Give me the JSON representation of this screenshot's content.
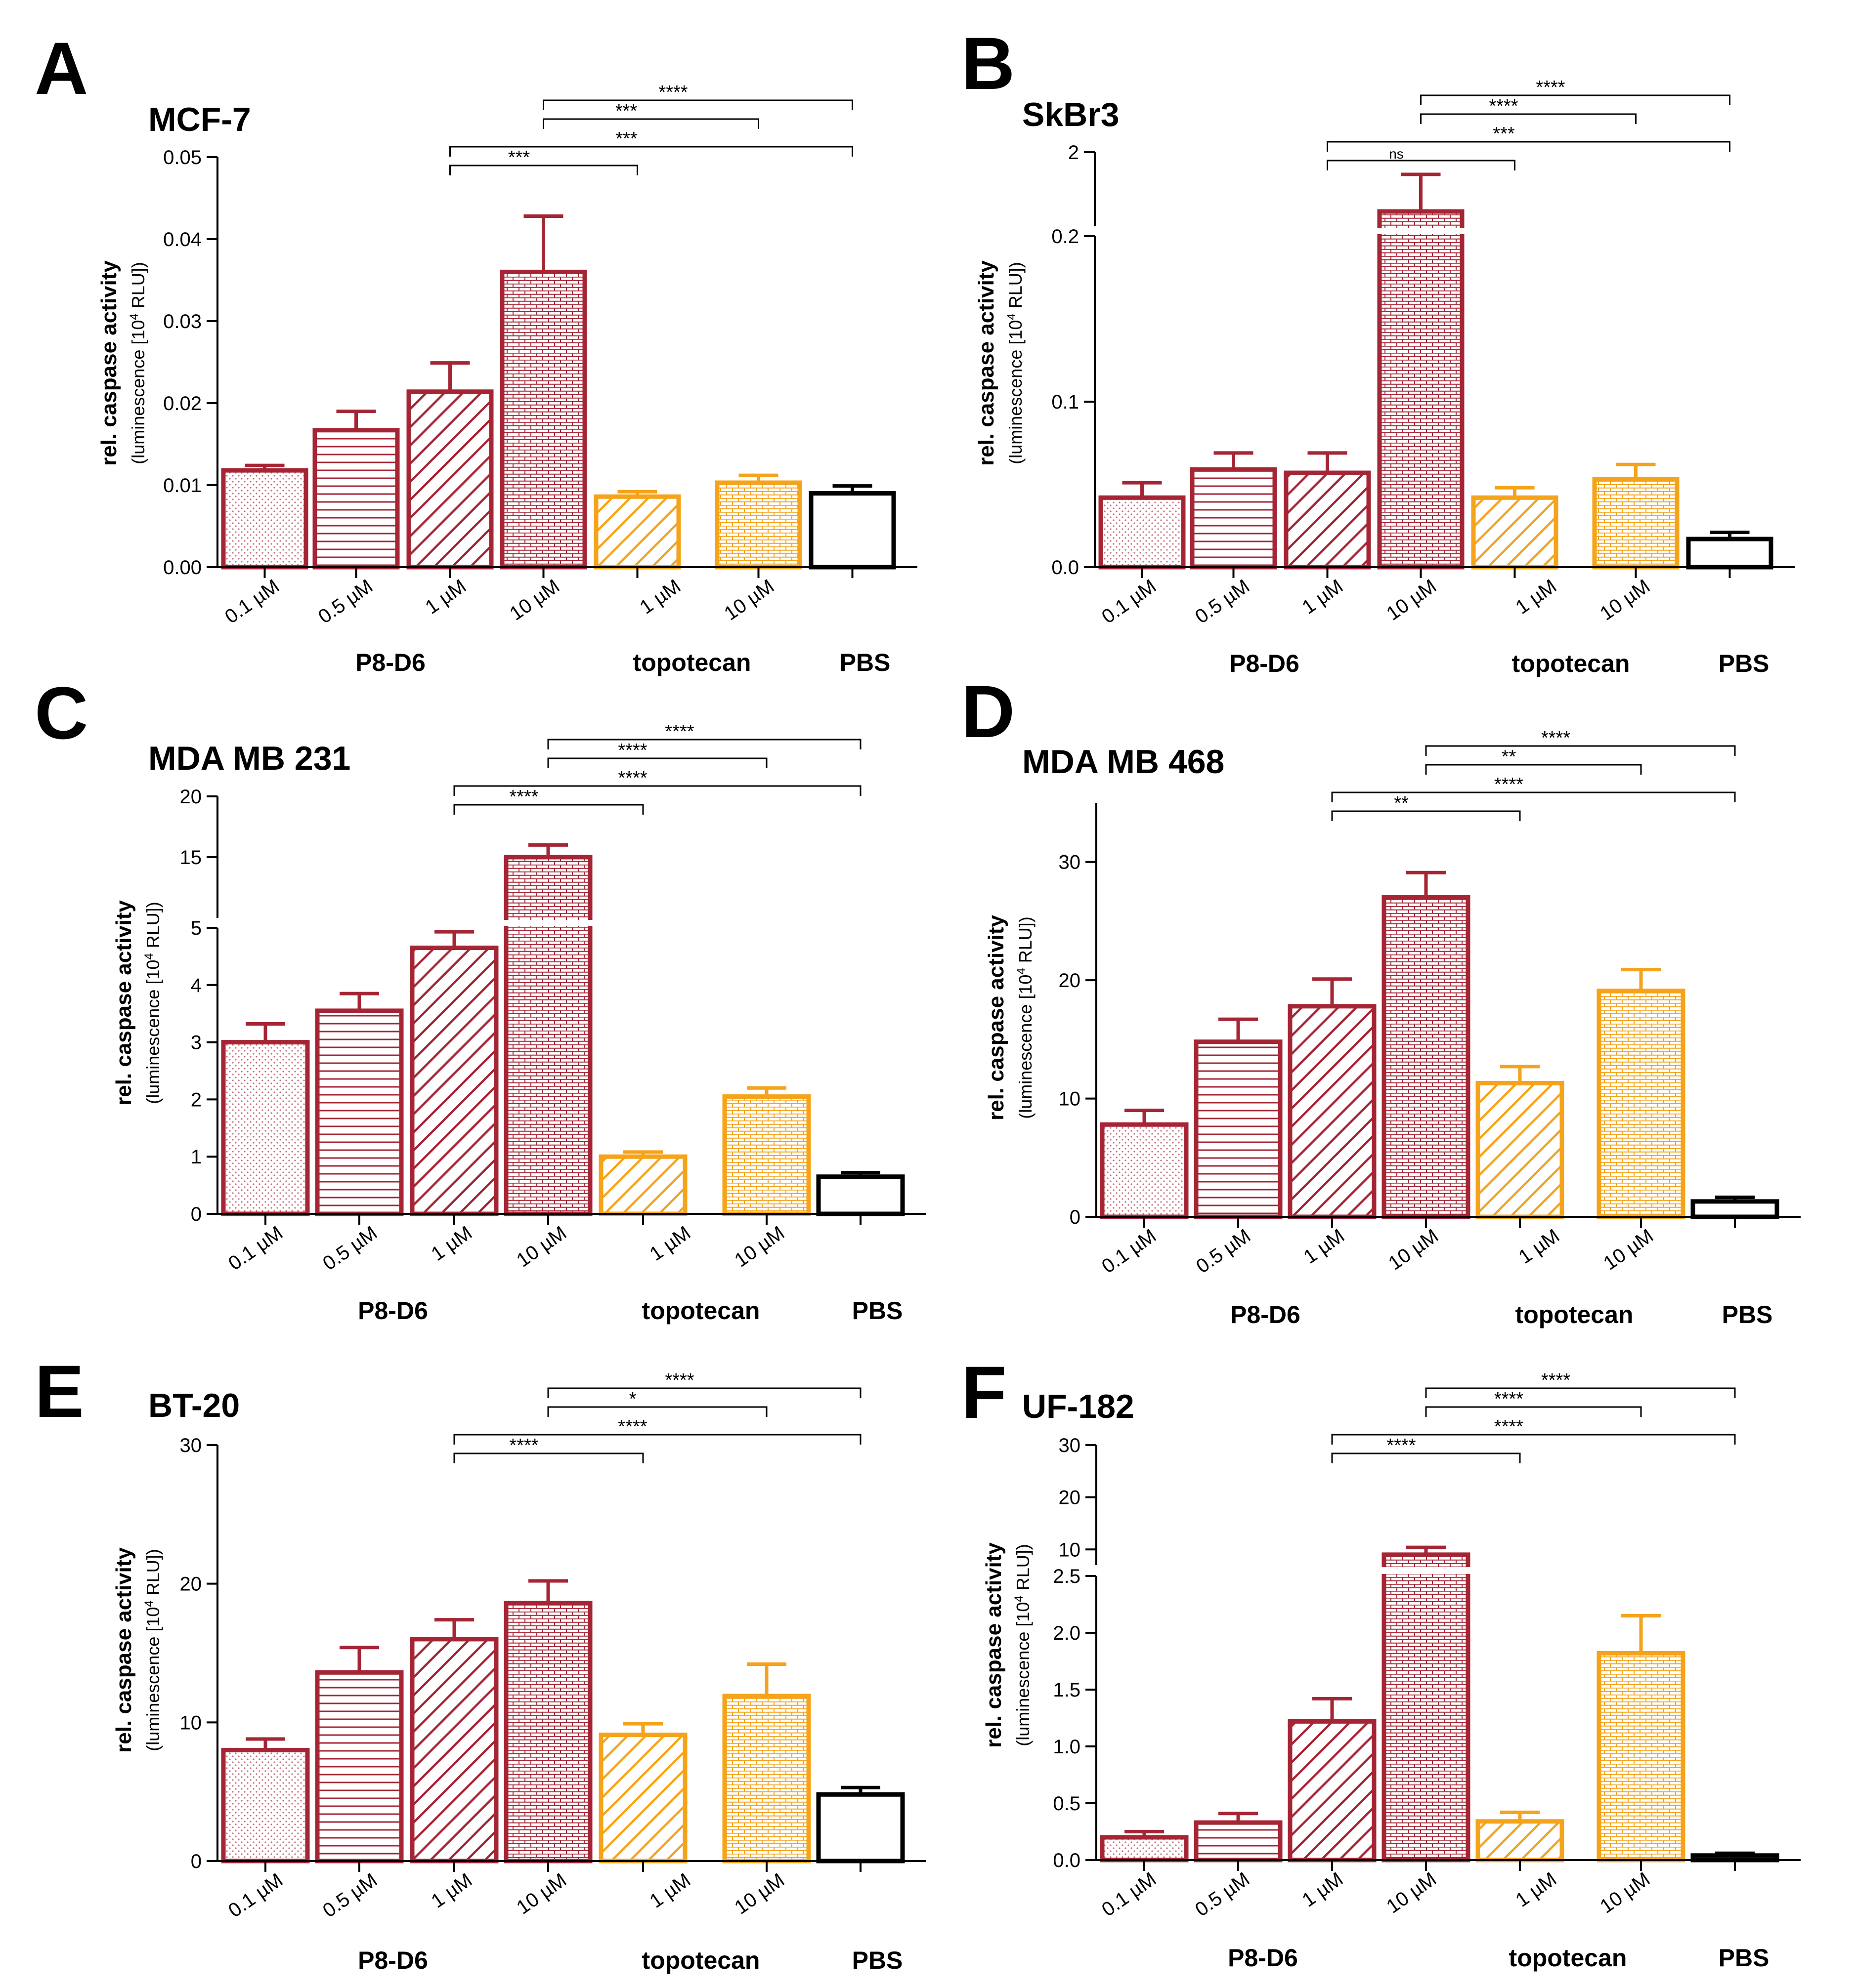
{
  "colors": {
    "p8": "#A52535",
    "topo": "#F5A31A",
    "pbs": "#000000"
  },
  "chart_data": [
    {
      "letter": "A",
      "title": "MCF-7",
      "type": "bar",
      "ylabel": "rel. caspase activity",
      "ylabel_sub_prefix": "(luminescence [10",
      "ylabel_sub_sup": "4",
      "ylabel_sub_suffix": " RLU])",
      "ylim": [
        0,
        0.05
      ],
      "ticks": [
        0,
        0.01,
        0.02,
        0.03,
        0.04,
        0.05
      ],
      "tick_labels": [
        "0.00",
        "0.01",
        "0.02",
        "0.03",
        "0.04",
        "0.05"
      ],
      "categories": [
        "0.1 µM",
        "0.5 µM",
        "1 µM",
        "10 µM",
        "1 µM",
        "10 µM",
        ""
      ],
      "groups": [
        "P8-D6",
        "topotecan",
        "PBS"
      ],
      "values": [
        0.0118,
        0.0167,
        0.0214,
        0.036,
        0.0086,
        0.0103,
        0.009
      ],
      "errors": [
        0.0006,
        0.0023,
        0.0035,
        0.0068,
        0.0006,
        0.0009,
        0.0009
      ],
      "significance": [
        {
          "from": 3,
          "to": 6,
          "label": "****"
        },
        {
          "from": 3,
          "to": 5,
          "label": "***"
        },
        {
          "from": 2,
          "to": 6,
          "label": "***"
        },
        {
          "from": 2,
          "to": 4,
          "label": "***"
        }
      ]
    },
    {
      "letter": "B",
      "title": "SkBr3",
      "type": "bar",
      "ylabel": "rel. caspase activity",
      "ylabel_sub_prefix": "(luminescence [10",
      "ylabel_sub_sup": "4",
      "ylabel_sub_suffix": " RLU])",
      "ylim": [
        0,
        2
      ],
      "axis_break": {
        "low": 0.2,
        "high": 1.9
      },
      "ticks": [
        0,
        0.1,
        0.2,
        2
      ],
      "tick_labels": [
        "0.0",
        "0.1",
        "0.2",
        "2"
      ],
      "categories": [
        "0.1 µM",
        "0.5 µM",
        "1 µM",
        "10 µM",
        "1 µM",
        "10 µM",
        ""
      ],
      "groups": [
        "P8-D6",
        "topotecan",
        "PBS"
      ],
      "values": [
        0.042,
        0.059,
        0.057,
        1.92,
        0.042,
        0.053,
        0.017
      ],
      "errors": [
        0.009,
        0.01,
        0.012,
        0.05,
        0.006,
        0.009,
        0.004
      ],
      "significance": [
        {
          "from": 3,
          "to": 6,
          "label": "****"
        },
        {
          "from": 3,
          "to": 5,
          "label": "****"
        },
        {
          "from": 2,
          "to": 6,
          "label": "***"
        },
        {
          "from": 2,
          "to": 4,
          "label": "ns"
        }
      ]
    },
    {
      "letter": "C",
      "title": "MDA MB 231",
      "type": "bar",
      "ylabel": "rel. caspase activity",
      "ylabel_sub_prefix": "(luminescence [10",
      "ylabel_sub_sup": "4",
      "ylabel_sub_suffix": " RLU])",
      "ylim": [
        0,
        20
      ],
      "axis_break": {
        "low": 5,
        "high": 10
      },
      "ticks": [
        0,
        1,
        2,
        3,
        4,
        5,
        15,
        20
      ],
      "tick_labels": [
        "0",
        "1",
        "2",
        "3",
        "4",
        "5",
        "15",
        "20"
      ],
      "categories": [
        "0.1 µM",
        "0.5 µM",
        "1 µM",
        "10 µM",
        "1 µM",
        "10 µM",
        ""
      ],
      "groups": [
        "P8-D6",
        "topotecan",
        "PBS"
      ],
      "values": [
        3.0,
        3.55,
        4.65,
        15.0,
        1.0,
        2.05,
        0.65
      ],
      "errors": [
        0.32,
        0.3,
        0.28,
        1.0,
        0.08,
        0.15,
        0.07
      ],
      "significance": [
        {
          "from": 3,
          "to": 6,
          "label": "****"
        },
        {
          "from": 3,
          "to": 5,
          "label": "****"
        },
        {
          "from": 2,
          "to": 6,
          "label": "****"
        },
        {
          "from": 2,
          "to": 4,
          "label": "****"
        }
      ]
    },
    {
      "letter": "D",
      "title": "MDA MB 468",
      "type": "bar",
      "ylabel": "rel. caspase activity",
      "ylabel_sub_prefix": "(luminescence [10",
      "ylabel_sub_sup": "4",
      "ylabel_sub_suffix": " RLU])",
      "ylim": [
        0,
        35
      ],
      "ticks": [
        0,
        10,
        20,
        30
      ],
      "tick_labels": [
        "0",
        "10",
        "20",
        "30"
      ],
      "categories": [
        "0.1 µM",
        "0.5 µM",
        "1 µM",
        "10 µM",
        "1 µM",
        "10 µM",
        ""
      ],
      "groups": [
        "P8-D6",
        "topotecan",
        "PBS"
      ],
      "values": [
        7.8,
        14.8,
        17.8,
        27.0,
        11.3,
        19.1,
        1.3
      ],
      "errors": [
        1.2,
        1.9,
        2.3,
        2.1,
        1.4,
        1.8,
        0.35
      ],
      "significance": [
        {
          "from": 3,
          "to": 6,
          "label": "****"
        },
        {
          "from": 3,
          "to": 5,
          "label": "**"
        },
        {
          "from": 2,
          "to": 6,
          "label": "****"
        },
        {
          "from": 2,
          "to": 4,
          "label": "**"
        }
      ]
    },
    {
      "letter": "E",
      "title": "BT-20",
      "type": "bar",
      "ylabel": "rel. caspase activity",
      "ylabel_sub_prefix": "(luminescence [10",
      "ylabel_sub_sup": "4",
      "ylabel_sub_suffix": " RLU])",
      "ylim": [
        0,
        30
      ],
      "ticks": [
        0,
        10,
        20,
        30
      ],
      "tick_labels": [
        "0",
        "10",
        "20",
        "30"
      ],
      "categories": [
        "0.1 µM",
        "0.5 µM",
        "1 µM",
        "10 µM",
        "1 µM",
        "10 µM",
        ""
      ],
      "groups": [
        "P8-D6",
        "topotecan",
        "PBS"
      ],
      "values": [
        8.0,
        13.6,
        16.0,
        18.6,
        9.1,
        11.9,
        4.8
      ],
      "errors": [
        0.8,
        1.8,
        1.4,
        1.6,
        0.8,
        2.3,
        0.5
      ],
      "significance": [
        {
          "from": 3,
          "to": 6,
          "label": "****"
        },
        {
          "from": 3,
          "to": 5,
          "label": "*"
        },
        {
          "from": 2,
          "to": 6,
          "label": "****"
        },
        {
          "from": 2,
          "to": 4,
          "label": "****"
        }
      ]
    },
    {
      "letter": "F",
      "title": "UF-182",
      "type": "bar",
      "ylabel": "rel. caspase activity",
      "ylabel_sub_prefix": "(luminescence [10",
      "ylabel_sub_sup": "4",
      "ylabel_sub_suffix": " RLU])",
      "ylim": [
        0,
        30
      ],
      "axis_break": {
        "low": 2.5,
        "high": 7
      },
      "ticks": [
        0,
        0.5,
        1.0,
        1.5,
        2.0,
        2.5,
        10,
        20,
        30
      ],
      "tick_labels": [
        "0.0",
        "0.5",
        "1.0",
        "1.5",
        "2.0",
        "2.5",
        "10",
        "20",
        "30"
      ],
      "categories": [
        "0.1 µM",
        "0.5 µM",
        "1 µM",
        "10 µM",
        "1 µM",
        "10 µM",
        ""
      ],
      "groups": [
        "P8-D6",
        "topotecan",
        "PBS"
      ],
      "values": [
        0.2,
        0.33,
        1.22,
        9.0,
        0.34,
        1.82,
        0.04
      ],
      "errors": [
        0.05,
        0.08,
        0.2,
        1.4,
        0.08,
        0.33,
        0.02
      ],
      "significance": [
        {
          "from": 3,
          "to": 6,
          "label": "****"
        },
        {
          "from": 3,
          "to": 5,
          "label": "****"
        },
        {
          "from": 2,
          "to": 6,
          "label": "****"
        },
        {
          "from": 2,
          "to": 4,
          "label": "****"
        }
      ]
    }
  ]
}
